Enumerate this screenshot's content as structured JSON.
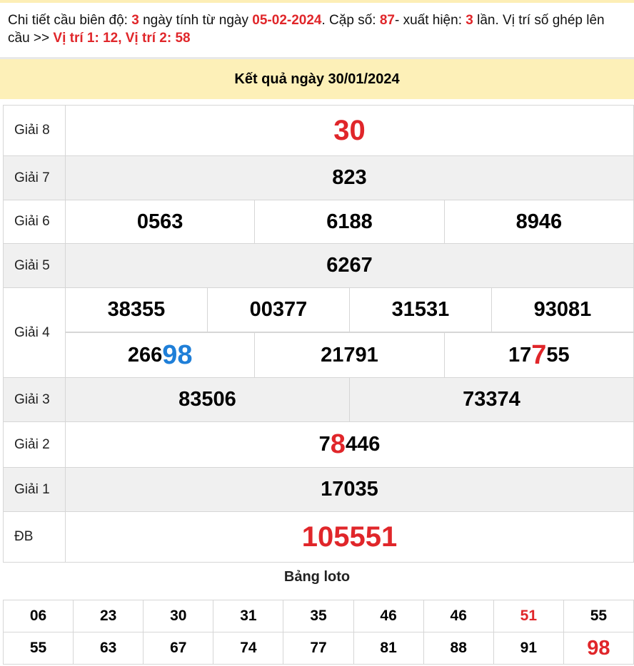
{
  "intro": {
    "p1": "Chi tiết cầu biên độ: ",
    "days": "3",
    "p2": " ngày tính từ ngày ",
    "date": "05-02-2024",
    "p3": ". Cặp số: ",
    "pair": "87",
    "p4": "- xuất hiện: ",
    "times": "3",
    "p5": " lần. Vị trí số ghép lên cầu >> ",
    "positions": "Vị trí 1: 12, Vị trí 2: 58"
  },
  "header": "Kết quả ngày 30/01/2024",
  "colors": {
    "accent_red": "#e0262a",
    "highlight_blue": "#1f7fd8",
    "header_bg": "#fdf0b8"
  },
  "prizes": [
    {
      "label": "Giải 8",
      "rows": [
        [
          [
            {
              "t": "30",
              "c": "bigred"
            }
          ]
        ]
      ]
    },
    {
      "label": "Giải 7",
      "rows": [
        [
          [
            {
              "t": "823"
            }
          ]
        ]
      ]
    },
    {
      "label": "Giải 6",
      "rows": [
        [
          [
            {
              "t": "0563"
            }
          ],
          [
            {
              "t": "6188"
            }
          ],
          [
            {
              "t": "8946"
            }
          ]
        ]
      ]
    },
    {
      "label": "Giải 5",
      "rows": [
        [
          [
            {
              "t": "6267"
            }
          ]
        ]
      ]
    },
    {
      "label": "Giải 4",
      "rows": [
        [
          [
            {
              "t": "38355"
            }
          ],
          [
            {
              "t": "00377"
            }
          ],
          [
            {
              "t": "31531"
            }
          ],
          [
            {
              "t": "93081"
            }
          ]
        ],
        [
          [
            {
              "t": "266"
            },
            {
              "t": "98",
              "c": "blue"
            }
          ],
          [
            {
              "t": "21791"
            }
          ],
          [
            {
              "t": "17"
            },
            {
              "t": "7",
              "c": "hlred"
            },
            {
              "t": "55"
            }
          ]
        ]
      ]
    },
    {
      "label": "Giải 3",
      "rows": [
        [
          [
            {
              "t": "83506"
            }
          ],
          [
            {
              "t": "73374"
            }
          ]
        ]
      ]
    },
    {
      "label": "Giải 2",
      "rows": [
        [
          [
            {
              "t": "7"
            },
            {
              "t": "8",
              "c": "hlred"
            },
            {
              "t": "446"
            }
          ]
        ]
      ]
    },
    {
      "label": "Giải 1",
      "rows": [
        [
          [
            {
              "t": "17035"
            }
          ]
        ]
      ]
    },
    {
      "label": "ĐB",
      "rows": [
        [
          [
            {
              "t": "105551",
              "c": "bigred"
            }
          ]
        ]
      ]
    }
  ],
  "loto": {
    "title": "Bảng loto",
    "rows": [
      [
        {
          "t": "06"
        },
        {
          "t": "23"
        },
        {
          "t": "30"
        },
        {
          "t": "31"
        },
        {
          "t": "35"
        },
        {
          "t": "46"
        },
        {
          "t": "46"
        },
        {
          "t": "51",
          "c": "red"
        },
        {
          "t": "55"
        }
      ],
      [
        {
          "t": "55"
        },
        {
          "t": "63"
        },
        {
          "t": "67"
        },
        {
          "t": "74"
        },
        {
          "t": "77"
        },
        {
          "t": "81"
        },
        {
          "t": "88"
        },
        {
          "t": "91"
        },
        {
          "t": "98",
          "c": "bigred"
        }
      ]
    ]
  }
}
